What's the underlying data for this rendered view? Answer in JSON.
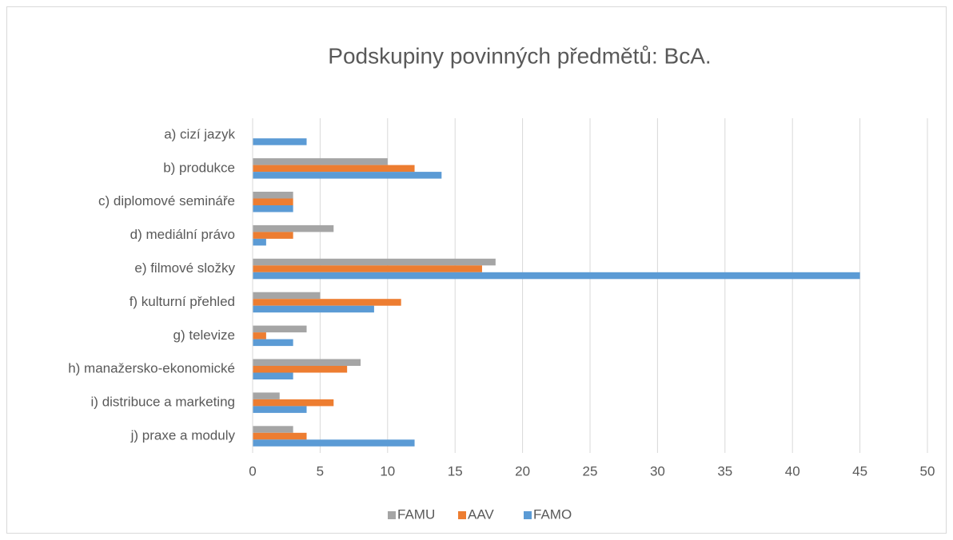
{
  "chart_data": {
    "type": "bar",
    "orientation": "horizontal",
    "title": "Podskupiny povinných předmětů: BcA.",
    "categories": [
      "a) cizí jazyk",
      "b) produkce",
      "c) diplomové semináře",
      "d) mediální právo",
      "e) filmové složky",
      "f) kulturní přehled",
      "g) televize",
      "h) manažersko-ekonomické",
      "i) distribuce a marketing",
      "j) praxe a moduly"
    ],
    "series": [
      {
        "name": "FAMU",
        "color": "#a5a5a5",
        "values": [
          0,
          10,
          3,
          6,
          18,
          5,
          4,
          8,
          2,
          3
        ]
      },
      {
        "name": "AAV",
        "color": "#ed7d31",
        "values": [
          0,
          12,
          3,
          3,
          17,
          11,
          1,
          7,
          6,
          4
        ]
      },
      {
        "name": "FAMO",
        "color": "#5b9bd5",
        "values": [
          4,
          14,
          3,
          1,
          45,
          9,
          3,
          3,
          4,
          12
        ]
      }
    ],
    "xlim": [
      0,
      50
    ],
    "xticks": [
      0,
      5,
      10,
      15,
      20,
      25,
      30,
      35,
      40,
      45,
      50
    ],
    "grid": true,
    "legend": "bottom"
  }
}
